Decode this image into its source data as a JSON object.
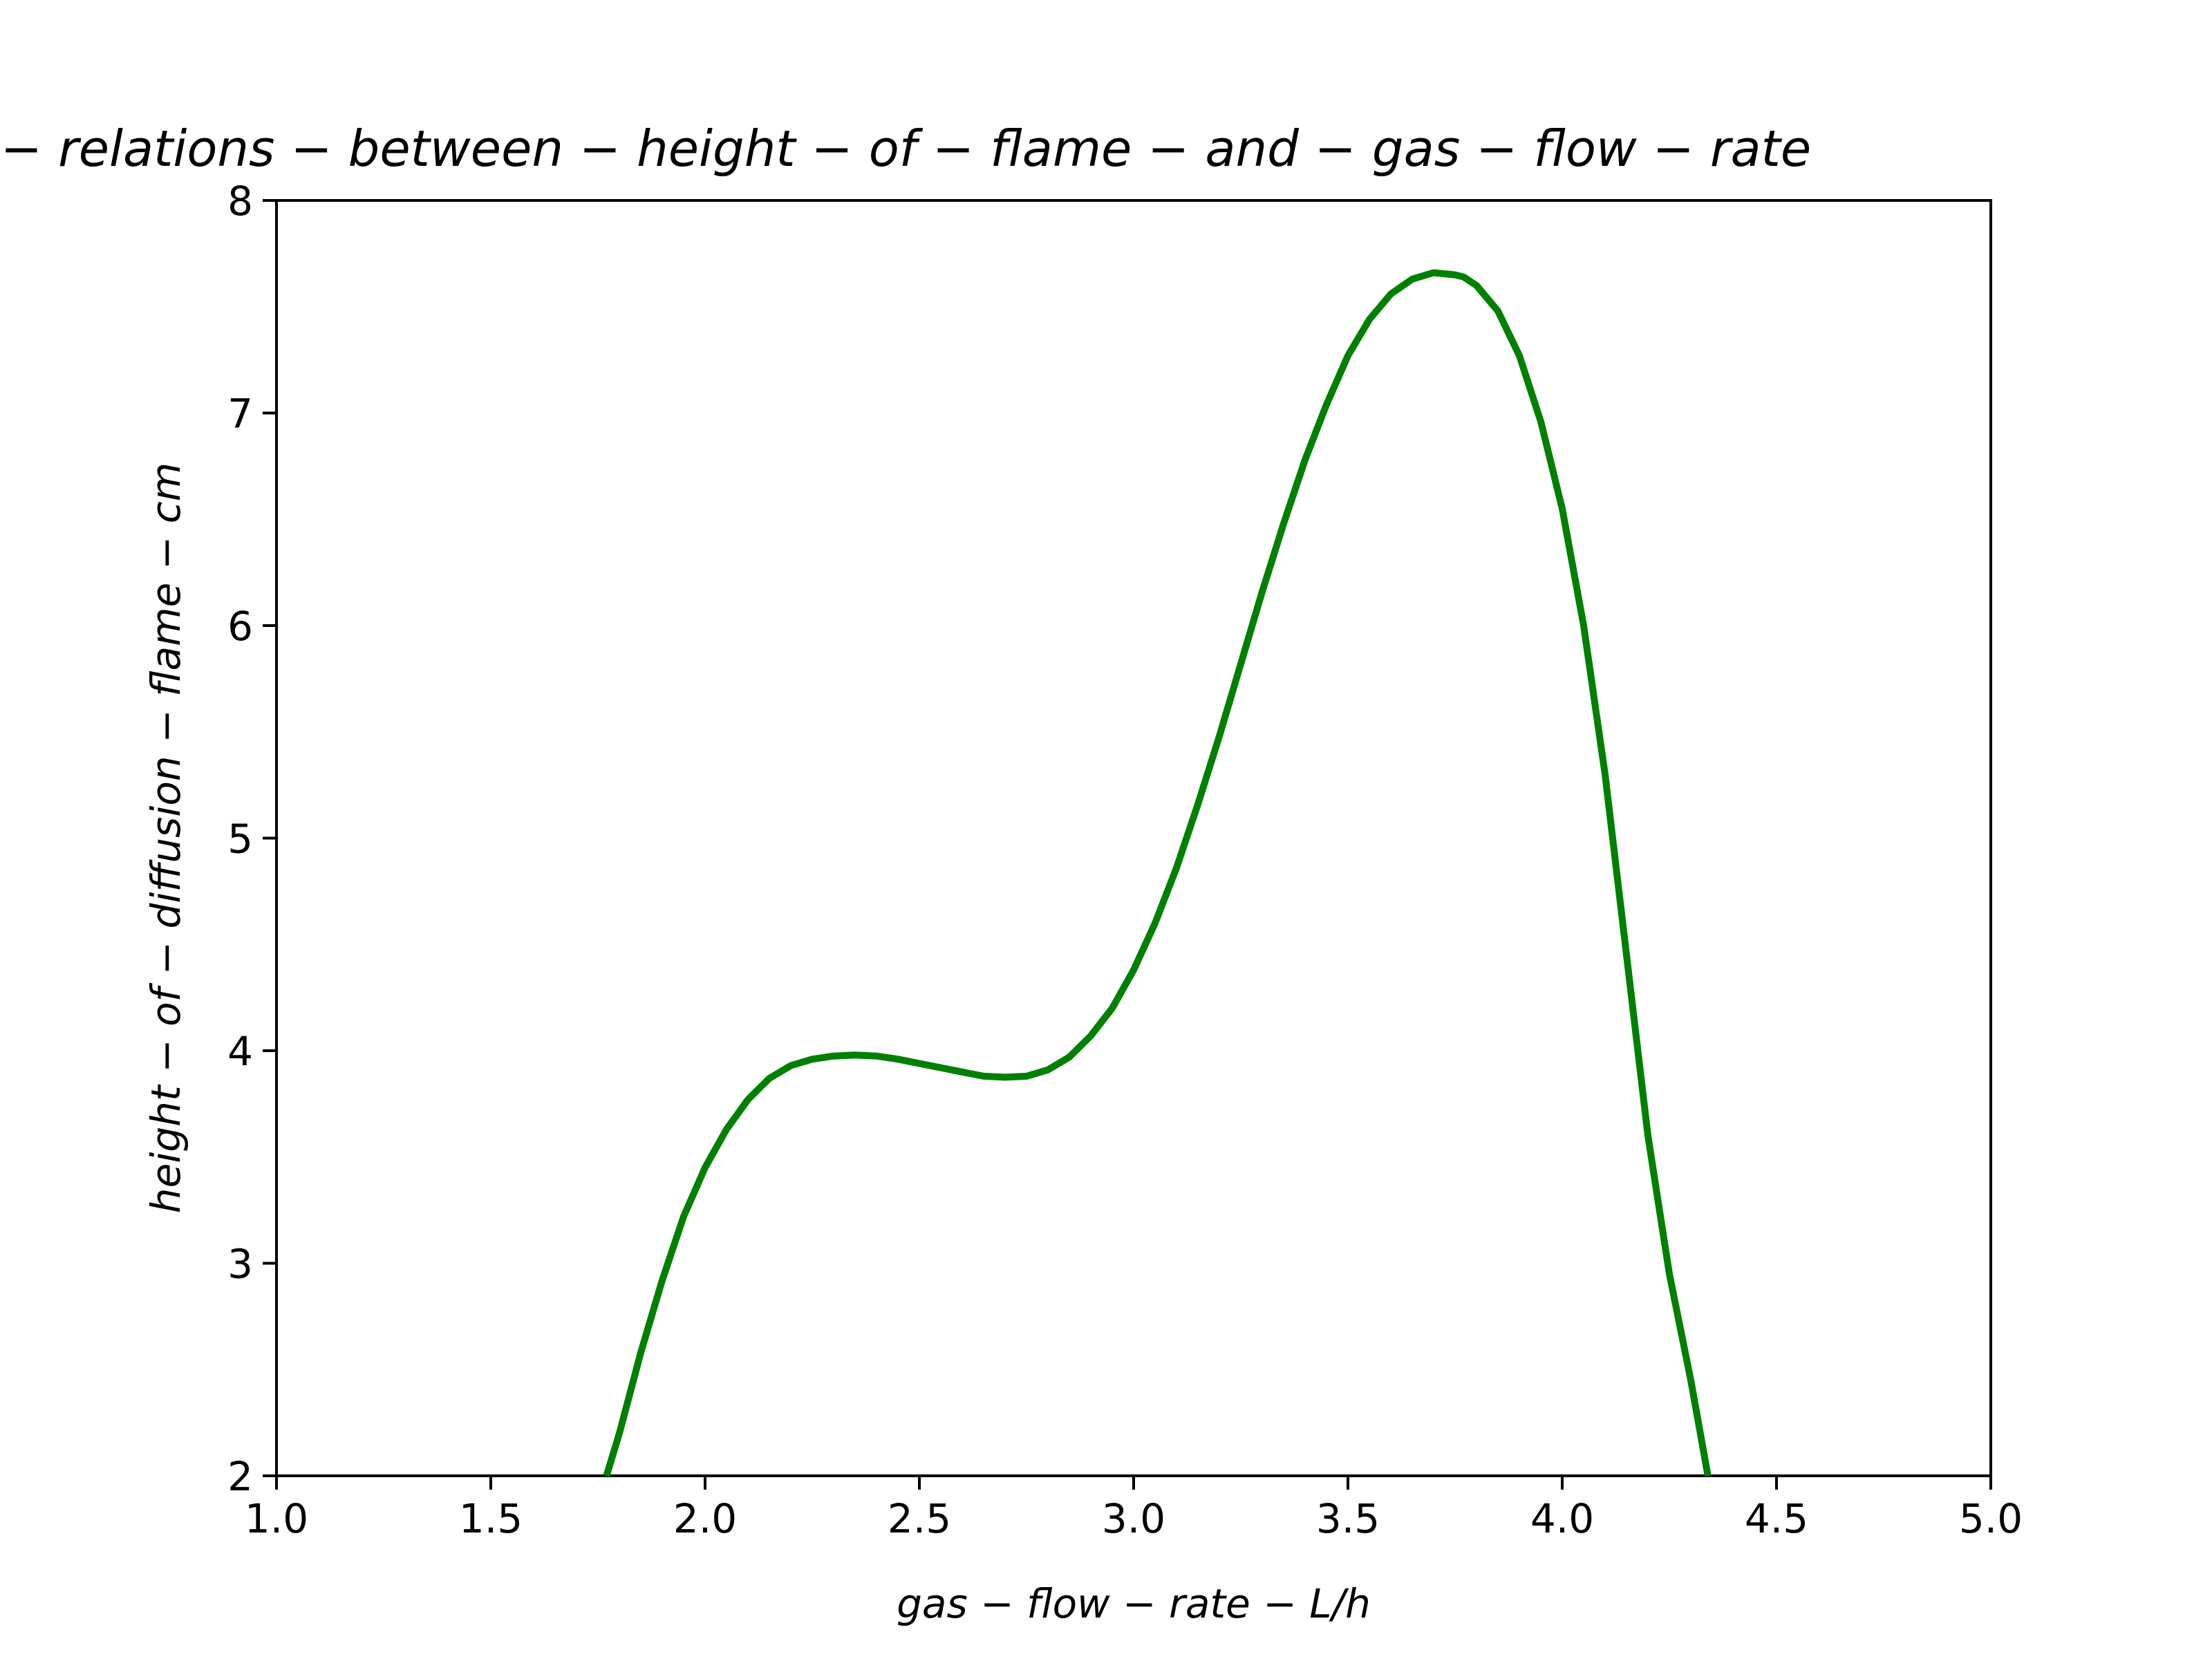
{
  "chart_data": {
    "type": "line",
    "title": "the − relations − between − height − of − flame − and − gas − flow − rate",
    "xlabel": "gas − flow − rate − L/h",
    "ylabel": "height − of − diffusion − flame − cm",
    "xlim": [
      1.0,
      5.0
    ],
    "ylim": [
      2,
      8
    ],
    "xticks": [
      "1.0",
      "1.5",
      "2.0",
      "2.5",
      "3.0",
      "3.5",
      "4.0",
      "4.5",
      "5.0"
    ],
    "yticks": [
      "2",
      "3",
      "4",
      "5",
      "6",
      "7",
      "8"
    ],
    "grid": false,
    "legend": "none",
    "series": [
      {
        "color": "#008000",
        "x": [
          1.77,
          1.8,
          1.85,
          1.9,
          1.95,
          2.0,
          2.05,
          2.1,
          2.15,
          2.2,
          2.25,
          2.3,
          2.35,
          2.4,
          2.45,
          2.5,
          2.55,
          2.6,
          2.65,
          2.7,
          2.75,
          2.8,
          2.85,
          2.9,
          2.95,
          3.0,
          3.05,
          3.1,
          3.15,
          3.2,
          3.25,
          3.3,
          3.35,
          3.4,
          3.45,
          3.5,
          3.55,
          3.6,
          3.65,
          3.7,
          3.75,
          3.77,
          3.8,
          3.85,
          3.9,
          3.95,
          4.0,
          4.05,
          4.1,
          4.15,
          4.2,
          4.25,
          4.3,
          4.34
        ],
        "y": [
          2.0,
          2.2,
          2.58,
          2.92,
          3.22,
          3.45,
          3.63,
          3.77,
          3.87,
          3.93,
          3.96,
          3.975,
          3.98,
          3.975,
          3.96,
          3.94,
          3.92,
          3.9,
          3.88,
          3.875,
          3.88,
          3.91,
          3.97,
          4.07,
          4.2,
          4.38,
          4.6,
          4.86,
          5.16,
          5.48,
          5.82,
          6.16,
          6.48,
          6.78,
          7.04,
          7.27,
          7.44,
          7.56,
          7.63,
          7.66,
          7.65,
          7.64,
          7.6,
          7.48,
          7.27,
          6.96,
          6.55,
          6.0,
          5.3,
          4.45,
          3.6,
          2.95,
          2.45,
          2.0
        ]
      }
    ]
  }
}
